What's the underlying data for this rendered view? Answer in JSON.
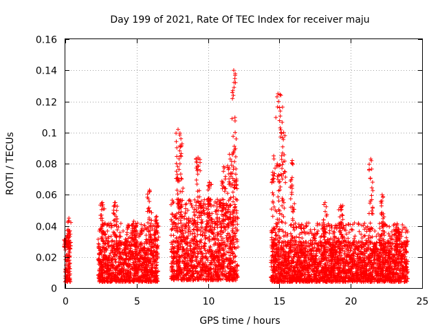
{
  "chart_data": {
    "type": "scatter",
    "title": "Day 199 of 2021, Rate Of TEC Index for receiver maju",
    "xlabel": "GPS time / hours",
    "ylabel": "ROTI / TECUs",
    "xlim": [
      0,
      25
    ],
    "ylim": [
      0,
      0.16
    ],
    "xticks": [
      "0",
      "5",
      "10",
      "15",
      "20",
      "25"
    ],
    "yticks": [
      "0",
      "0.02",
      "0.04",
      "0.06",
      "0.08",
      "0.1",
      "0.12",
      "0.14",
      "0.16"
    ],
    "xtick_values": [
      0,
      5,
      10,
      15,
      20,
      25
    ],
    "ytick_values": [
      0,
      0.02,
      0.04,
      0.06,
      0.08,
      0.1,
      0.12,
      0.14,
      0.16
    ],
    "grid": true,
    "marker": "+",
    "color": "#ff0000",
    "segments": [
      {
        "x_start": 0.0,
        "x_end": 0.35,
        "base_min": 0.004,
        "base_max": 0.026,
        "peaks": [
          [
            0.05,
            0.031
          ],
          [
            0.25,
            0.045
          ]
        ]
      },
      {
        "x_start": 2.3,
        "x_end": 6.5,
        "base_min": 0.004,
        "base_max": 0.03,
        "peaks": [
          [
            2.6,
            0.055
          ],
          [
            3.5,
            0.055
          ],
          [
            4.8,
            0.043
          ],
          [
            5.9,
            0.063
          ],
          [
            6.4,
            0.046
          ]
        ]
      },
      {
        "x_start": 7.4,
        "x_end": 12.1,
        "base_min": 0.005,
        "base_max": 0.045,
        "peaks": [
          [
            7.9,
            0.102
          ],
          [
            8.1,
            0.096
          ],
          [
            9.3,
            0.084
          ],
          [
            10.1,
            0.068
          ],
          [
            11.1,
            0.078
          ],
          [
            11.5,
            0.086
          ],
          [
            11.8,
            0.14
          ],
          [
            11.9,
            0.1
          ]
        ]
      },
      {
        "x_start": 14.4,
        "x_end": 24.0,
        "base_min": 0.004,
        "base_max": 0.03,
        "peaks": [
          [
            14.6,
            0.085
          ],
          [
            14.9,
            0.125
          ],
          [
            15.1,
            0.124
          ],
          [
            15.3,
            0.1
          ],
          [
            15.9,
            0.082
          ],
          [
            18.2,
            0.055
          ],
          [
            19.3,
            0.053
          ],
          [
            21.4,
            0.083
          ],
          [
            22.2,
            0.06
          ],
          [
            23.3,
            0.038
          ]
        ]
      }
    ]
  }
}
